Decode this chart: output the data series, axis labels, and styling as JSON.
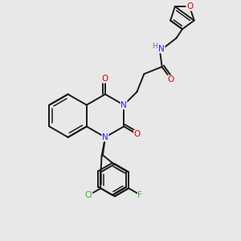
{
  "bg_color": "#e8e8e8",
  "bond_color": "#1a1a1a",
  "bond_width": 1.4,
  "atom_colors": {
    "C": "#1a1a1a",
    "N": "#2020ff",
    "O": "#dd0000",
    "F": "#33aa33",
    "Cl": "#33aa33",
    "H": "#777777"
  },
  "font_size": 7.5
}
